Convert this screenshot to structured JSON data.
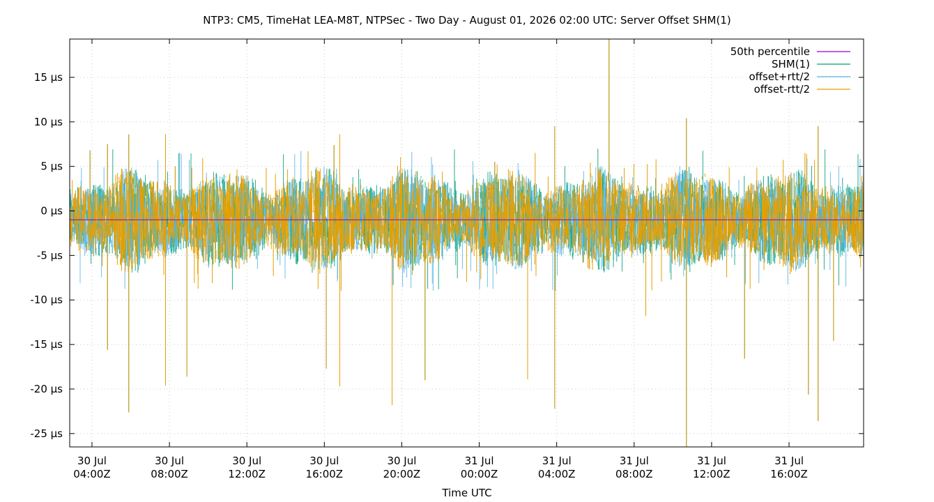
{
  "chart_data": {
    "type": "line",
    "title": "NTP3: CM5, TimeHat LEA-M8T, NTPSec - Two Day - August 01, 2026 02:00 UTC: Server Offset SHM(1)",
    "xlabel": "Time UTC",
    "ylabel": "",
    "x_range_hours_from_30jul_0000": [
      2.85,
      43.85
    ],
    "ylim": [
      -26.5,
      19.3
    ],
    "y_unit": "µs",
    "grid": true,
    "legend_position": "top-right",
    "y_ticks": [
      {
        "value": 15,
        "label": "15 µs"
      },
      {
        "value": 10,
        "label": "10 µs"
      },
      {
        "value": 5,
        "label": "5 µs"
      },
      {
        "value": 0,
        "label": "0 µs"
      },
      {
        "value": -5,
        "label": "-5 µs"
      },
      {
        "value": -10,
        "label": "-10 µs"
      },
      {
        "value": -15,
        "label": "-15 µs"
      },
      {
        "value": -20,
        "label": "-20 µs"
      },
      {
        "value": -25,
        "label": "-25 µs"
      }
    ],
    "x_ticks": [
      {
        "hour": 4,
        "date": "30 Jul",
        "time": "04:00Z"
      },
      {
        "hour": 8,
        "date": "30 Jul",
        "time": "08:00Z"
      },
      {
        "hour": 12,
        "date": "30 Jul",
        "time": "12:00Z"
      },
      {
        "hour": 16,
        "date": "30 Jul",
        "time": "16:00Z"
      },
      {
        "hour": 20,
        "date": "30 Jul",
        "time": "20:00Z"
      },
      {
        "hour": 24,
        "date": "31 Jul",
        "time": "00:00Z"
      },
      {
        "hour": 28,
        "date": "31 Jul",
        "time": "04:00Z"
      },
      {
        "hour": 32,
        "date": "31 Jul",
        "time": "08:00Z"
      },
      {
        "hour": 36,
        "date": "31 Jul",
        "time": "12:00Z"
      },
      {
        "hour": 40,
        "date": "31 Jul",
        "time": "16:00Z"
      }
    ],
    "series": [
      {
        "name": "50th percentile",
        "color": "#9400d3",
        "approx_value": -1.0
      },
      {
        "name": "SHM(1)",
        "color": "#009e73",
        "band": [
          -4.5,
          2.5
        ]
      },
      {
        "name": "offset+rtt/2",
        "color": "#56b4e9",
        "band": [
          -4.5,
          2.5
        ]
      },
      {
        "name": "offset-rtt/2",
        "color": "#e69f00",
        "band": [
          -4.5,
          2.5
        ]
      }
    ],
    "notable_spikes": [
      {
        "hour": 3.9,
        "value": 6.8
      },
      {
        "hour": 4.8,
        "value": 7.5
      },
      {
        "hour": 4.8,
        "value": -15.6
      },
      {
        "hour": 5.9,
        "value": 8.6
      },
      {
        "hour": 5.9,
        "value": -22.6
      },
      {
        "hour": 7.8,
        "value": 8.6
      },
      {
        "hour": 7.8,
        "value": -19.6
      },
      {
        "hour": 8.3,
        "value": 5.0
      },
      {
        "hour": 8.9,
        "value": -18.6
      },
      {
        "hour": 16.1,
        "value": -17.7
      },
      {
        "hour": 16.5,
        "value": 7.4
      },
      {
        "hour": 16.8,
        "value": 8.6
      },
      {
        "hour": 16.8,
        "value": -19.7
      },
      {
        "hour": 19.5,
        "value": -21.8
      },
      {
        "hour": 21.2,
        "value": -19.0
      },
      {
        "hour": 24.8,
        "value": 5.5
      },
      {
        "hour": 26.5,
        "value": -18.9
      },
      {
        "hour": 27.9,
        "value": 9.5
      },
      {
        "hour": 27.9,
        "value": -22.2
      },
      {
        "hour": 30.7,
        "value": 19.3
      },
      {
        "hour": 32.6,
        "value": -11.8
      },
      {
        "hour": 34.7,
        "value": 10.4
      },
      {
        "hour": 34.7,
        "value": -26.5
      },
      {
        "hour": 37.7,
        "value": -16.6
      },
      {
        "hour": 41.0,
        "value": -20.6
      },
      {
        "hour": 41.5,
        "value": 9.5
      },
      {
        "hour": 41.5,
        "value": -23.6
      },
      {
        "hour": 42.3,
        "value": -14.6
      }
    ]
  }
}
